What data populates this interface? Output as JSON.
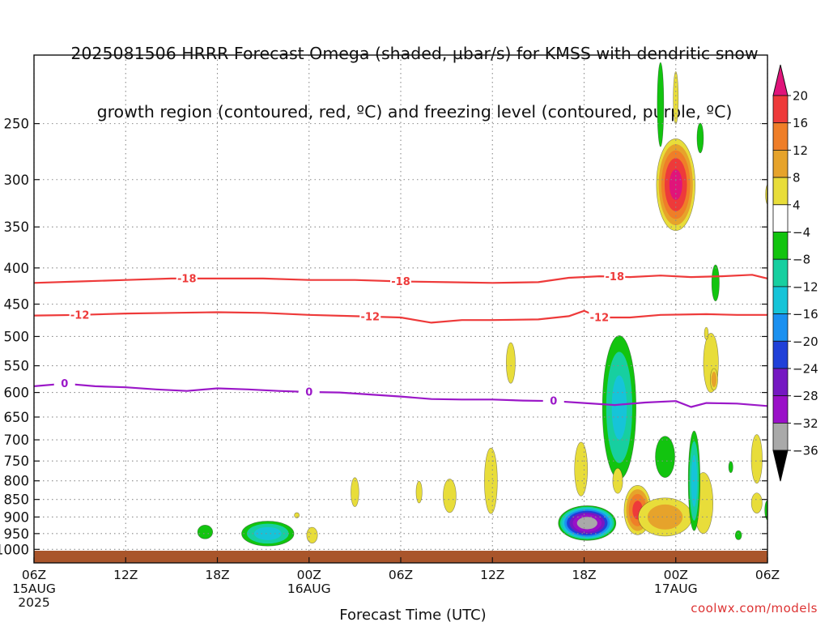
{
  "title_lines": [
    "2025081506 HRRR Forecast Omega (shaded, µbar/s) for KMSS with dendritic snow",
    "growth region (contoured, red, ºC) and freezing level (contoured, purple, ºC)"
  ],
  "credit": "coolwx.com/models",
  "colors": {
    "dgz": "#ee3a3a",
    "freezing": "#9b18c8",
    "ground": "#a9552b",
    "grid": "#8a8a8a"
  },
  "chart_data": {
    "type": "heatmap",
    "xlabel": "Forecast Time (UTC)",
    "ylabel": "",
    "x_range_hours": [
      0,
      48
    ],
    "y_scale": "log",
    "y_range": [
      1045,
      200
    ],
    "y_ticks": [
      250,
      300,
      350,
      400,
      450,
      500,
      550,
      600,
      650,
      700,
      750,
      800,
      850,
      900,
      950,
      1000
    ],
    "x_ticks": [
      {
        "hour": 0,
        "label": "06Z",
        "sub1": "15AUG",
        "sub2": "2025"
      },
      {
        "hour": 6,
        "label": "12Z",
        "sub1": "",
        "sub2": ""
      },
      {
        "hour": 12,
        "label": "18Z",
        "sub1": "",
        "sub2": ""
      },
      {
        "hour": 18,
        "label": "00Z",
        "sub1": "16AUG",
        "sub2": ""
      },
      {
        "hour": 24,
        "label": "06Z",
        "sub1": "",
        "sub2": ""
      },
      {
        "hour": 30,
        "label": "12Z",
        "sub1": "",
        "sub2": ""
      },
      {
        "hour": 36,
        "label": "18Z",
        "sub1": "",
        "sub2": ""
      },
      {
        "hour": 42,
        "label": "00Z",
        "sub1": "17AUG",
        "sub2": ""
      },
      {
        "hour": 48,
        "label": "06Z",
        "sub1": "",
        "sub2": ""
      }
    ],
    "colorbar": {
      "labels": [
        "20",
        "16",
        "12",
        "8",
        "4",
        "−4",
        "−8",
        "−12",
        "−16",
        "−20",
        "−24",
        "−28",
        "−32",
        "−36"
      ],
      "bins": [
        {
          "lo": 20,
          "hi": 99,
          "color": "#e0147a"
        },
        {
          "lo": 16,
          "hi": 20,
          "color": "#ee3a3a"
        },
        {
          "lo": 12,
          "hi": 16,
          "color": "#ef7e28"
        },
        {
          "lo": 8,
          "hi": 12,
          "color": "#e6a32b"
        },
        {
          "lo": 4,
          "hi": 8,
          "color": "#e8dd3a"
        },
        {
          "lo": -4,
          "hi": 4,
          "color": "#ffffff"
        },
        {
          "lo": -8,
          "hi": -4,
          "color": "#12c40f"
        },
        {
          "lo": -12,
          "hi": -8,
          "color": "#17cfa0"
        },
        {
          "lo": -16,
          "hi": -12,
          "color": "#16c4d8"
        },
        {
          "lo": -20,
          "hi": -16,
          "color": "#1a90f0"
        },
        {
          "lo": -24,
          "hi": -20,
          "color": "#2040d8"
        },
        {
          "lo": -28,
          "hi": -24,
          "color": "#7518c2"
        },
        {
          "lo": -32,
          "hi": -28,
          "color": "#9a10c8"
        },
        {
          "lo": -36,
          "hi": -32,
          "color": "#a9a9a9"
        },
        {
          "lo": -99,
          "hi": -36,
          "color": "#000000"
        }
      ]
    },
    "contours": [
      {
        "label": "-18",
        "color": "dgz",
        "label_hours": [
          10,
          24,
          38
        ],
        "points": [
          [
            0,
            420
          ],
          [
            3,
            418
          ],
          [
            6,
            416
          ],
          [
            9,
            414
          ],
          [
            12,
            414
          ],
          [
            15,
            414
          ],
          [
            18,
            416
          ],
          [
            21,
            416
          ],
          [
            24,
            418
          ],
          [
            27,
            419
          ],
          [
            30,
            420
          ],
          [
            33,
            419
          ],
          [
            35,
            413
          ],
          [
            37,
            411
          ],
          [
            39,
            412
          ],
          [
            41,
            410
          ],
          [
            43,
            412
          ],
          [
            45,
            411
          ],
          [
            47,
            409
          ],
          [
            48,
            414
          ]
        ]
      },
      {
        "label": "-12",
        "color": "dgz",
        "label_hours": [
          3,
          22,
          37
        ],
        "points": [
          [
            0,
            467
          ],
          [
            3,
            466
          ],
          [
            6,
            464
          ],
          [
            9,
            463
          ],
          [
            12,
            462
          ],
          [
            15,
            463
          ],
          [
            18,
            466
          ],
          [
            21,
            468
          ],
          [
            24,
            470
          ],
          [
            26,
            478
          ],
          [
            28,
            474
          ],
          [
            30,
            474
          ],
          [
            33,
            473
          ],
          [
            35,
            468
          ],
          [
            36,
            460
          ],
          [
            37,
            470
          ],
          [
            39,
            470
          ],
          [
            41,
            466
          ],
          [
            44,
            465
          ],
          [
            46,
            466
          ],
          [
            48,
            466
          ]
        ]
      },
      {
        "label": "0",
        "color": "freezing",
        "label_hours": [
          2,
          18,
          34
        ],
        "points": [
          [
            0,
            588
          ],
          [
            2,
            583
          ],
          [
            4,
            588
          ],
          [
            6,
            590
          ],
          [
            8,
            594
          ],
          [
            10,
            597
          ],
          [
            12,
            592
          ],
          [
            14,
            594
          ],
          [
            16,
            597
          ],
          [
            18,
            599
          ],
          [
            20,
            600
          ],
          [
            22,
            604
          ],
          [
            24,
            608
          ],
          [
            26,
            613
          ],
          [
            28,
            614
          ],
          [
            30,
            614
          ],
          [
            32,
            616
          ],
          [
            34,
            617
          ],
          [
            36,
            621
          ],
          [
            38,
            625
          ],
          [
            40,
            620
          ],
          [
            42,
            617
          ],
          [
            43,
            629
          ],
          [
            44,
            621
          ],
          [
            46,
            622
          ],
          [
            48,
            627
          ]
        ]
      }
    ],
    "blobs": [
      {
        "cx": 11.2,
        "p": 945,
        "rx": 0.7,
        "rp": 30,
        "value": -6
      },
      {
        "cx": 15.3,
        "p": 950,
        "rx": 2.0,
        "rp": 45,
        "value": -13
      },
      {
        "cx": 17.2,
        "p": 895,
        "rx": 0.25,
        "rp": 12,
        "value": 5
      },
      {
        "cx": 18.2,
        "p": 955,
        "rx": 0.5,
        "rp": 35,
        "value": 6
      },
      {
        "cx": 21.0,
        "p": 830,
        "rx": 0.4,
        "rp": 60,
        "value": 5
      },
      {
        "cx": 25.2,
        "p": 830,
        "rx": 0.3,
        "rp": 45,
        "value": 5
      },
      {
        "cx": 27.2,
        "p": 840,
        "rx": 0.6,
        "rp": 65,
        "value": 6
      },
      {
        "cx": 29.9,
        "p": 800,
        "rx": 0.6,
        "rp": 120,
        "value": 6
      },
      {
        "cx": 31.2,
        "p": 545,
        "rx": 0.45,
        "rp": 55,
        "value": 5
      },
      {
        "cx": 36.2,
        "p": 918,
        "rx": 2.0,
        "rp": 55,
        "value": -34
      },
      {
        "cx": 35.8,
        "p": 770,
        "rx": 0.6,
        "rp": 95,
        "value": 6
      },
      {
        "cx": 38.3,
        "p": 630,
        "rx": 1.3,
        "rp": 170,
        "value": -12
      },
      {
        "cx": 39.5,
        "p": 880,
        "rx": 1.0,
        "rp": 80,
        "value": 16
      },
      {
        "cx": 41.3,
        "p": 900,
        "rx": 2.2,
        "rp": 70,
        "value": 9
      },
      {
        "cx": 41.3,
        "p": 740,
        "rx": 0.9,
        "rp": 70,
        "value": -6
      },
      {
        "cx": 38.2,
        "p": 800,
        "rx": 0.5,
        "rp": 50,
        "value": 5
      },
      {
        "cx": 42.0,
        "p": 305,
        "rx": 1.4,
        "rp": 50,
        "value": 20
      },
      {
        "cx": 41.0,
        "p": 235,
        "rx": 0.3,
        "rp": 45,
        "value": -6
      },
      {
        "cx": 42.0,
        "p": 230,
        "rx": 0.25,
        "rp": 30,
        "value": 5
      },
      {
        "cx": 43.6,
        "p": 262,
        "rx": 0.3,
        "rp": 18,
        "value": -6
      },
      {
        "cx": 43.8,
        "p": 860,
        "rx": 0.9,
        "rp": 120,
        "value": 6
      },
      {
        "cx": 43.2,
        "p": 800,
        "rx": 0.45,
        "rp": 150,
        "value": -13
      },
      {
        "cx": 44.3,
        "p": 545,
        "rx": 0.75,
        "rp": 80,
        "value": 5
      },
      {
        "cx": 44.5,
        "p": 575,
        "rx": 0.3,
        "rp": 25,
        "value": 10
      },
      {
        "cx": 44.6,
        "p": 420,
        "rx": 0.35,
        "rp": 35,
        "value": -6
      },
      {
        "cx": 44.0,
        "p": 495,
        "rx": 0.2,
        "rp": 15,
        "value": 5
      },
      {
        "cx": 45.6,
        "p": 765,
        "rx": 0.2,
        "rp": 20,
        "value": -6
      },
      {
        "cx": 46.1,
        "p": 955,
        "rx": 0.3,
        "rp": 20,
        "value": -6
      },
      {
        "cx": 47.3,
        "p": 745,
        "rx": 0.55,
        "rp": 90,
        "value": 5
      },
      {
        "cx": 47.3,
        "p": 860,
        "rx": 0.5,
        "rp": 40,
        "value": 6
      },
      {
        "cx": 48.0,
        "p": 880,
        "rx": 0.25,
        "rp": 40,
        "value": -6
      },
      {
        "cx": 48.0,
        "p": 315,
        "rx": 0.2,
        "rp": 15,
        "value": 5
      }
    ]
  }
}
